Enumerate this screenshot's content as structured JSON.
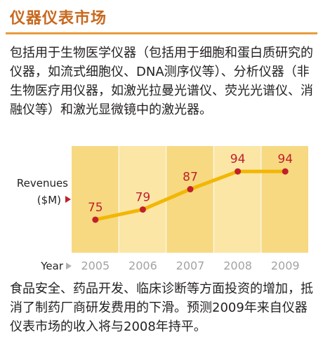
{
  "section_title": "仪器仪表市场",
  "intro_text": "包括用于生物医学仪器（包括用于细胞和蛋白质研究的仪器，如流式细胞仪、DNA测序仪等）、分析仪器（非生物医疗用仪器，如激光拉曼光谱仪、荧光光谱仪、消融仪等）和激光显微镜中的激光器。",
  "outro_text": "食品安全、药品开发、临床诊断等方面投资的增加，抵消了制药厂商研发费用的下滑。预测2009年来自仪器仪表市场的收入将与2008年持平。",
  "colors": {
    "title": "#c8681e",
    "column_light": "#fbe6a6",
    "column_dark": "#f7d982",
    "line": "#f2b705",
    "marker": "#c0202a",
    "value_label": "#c0202a",
    "year_label": "#a3a3a3",
    "arrow": "#c0202a"
  },
  "chart_data": {
    "type": "line",
    "ylabel_line1": "Revenues",
    "ylabel_line2": "($M)",
    "xlabel": "Year",
    "categories": [
      "2005",
      "2006",
      "2007",
      "2008",
      "2009"
    ],
    "values": [
      75,
      79,
      87,
      94,
      94
    ],
    "ylim": [
      62,
      104
    ],
    "grid": false,
    "legend": "none"
  }
}
